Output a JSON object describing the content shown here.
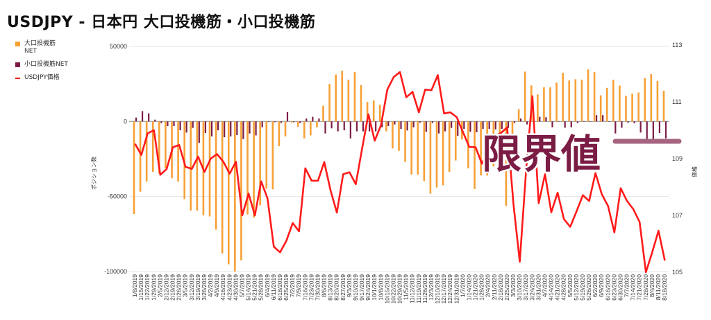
{
  "title": "USDJPY - 日本円 大口投機筋・小口投機筋",
  "annotation": "限界値",
  "colors": {
    "large": "#f7a035",
    "small": "#7b1c45",
    "price": "#ff1a1a",
    "annotation": "#7b1c45",
    "pill": "#a5647f"
  },
  "chart_data": {
    "type": "bar+line",
    "title": "USDJPY - 日本円 大口投機筋・小口投機筋",
    "ylabel": "ポジション数",
    "y2label": "価格",
    "ylim": [
      -100000,
      50000
    ],
    "y2lim": [
      105,
      113
    ],
    "yticks": [
      "50000",
      "0",
      "-50000",
      "-100000"
    ],
    "yticks_values": [
      50000,
      0,
      -50000,
      -100000
    ],
    "y2ticks": [
      "113",
      "111",
      "109",
      "107",
      "105"
    ],
    "y2ticks_values": [
      113,
      111,
      109,
      107,
      105
    ],
    "legend": [
      "大口投機筋NET",
      "小口投機筋NET",
      "USDJPY価格"
    ],
    "legend_lines": [
      [
        "大口投機筋",
        "NET"
      ],
      [
        "小口投機筋NET"
      ],
      [
        "USDJPY価格"
      ]
    ],
    "legend_position": "left",
    "x": [
      "1/8/2019",
      "1/15/2019",
      "1/22/2019",
      "1/29/2019",
      "2/5/2019",
      "2/12/2019",
      "2/19/2019",
      "2/26/2019",
      "3/5/2019",
      "3/12/2019",
      "3/19/2019",
      "3/26/2019",
      "4/2/2019",
      "4/9/2019",
      "4/16/2019",
      "4/23/2019",
      "4/30/2019",
      "5/7/2019",
      "5/14/2019",
      "5/21/2019",
      "5/28/2019",
      "6/4/2019",
      "6/11/2019",
      "6/18/2019",
      "6/25/2019",
      "7/2/2019",
      "7/9/2019",
      "7/16/2019",
      "7/23/2019",
      "7/30/2019",
      "8/6/2019",
      "8/13/2019",
      "8/20/2019",
      "8/27/2019",
      "9/3/2019",
      "9/10/2019",
      "9/17/2019",
      "9/24/2019",
      "10/1/2019",
      "10/8/2019",
      "10/15/2019",
      "10/22/2019",
      "10/29/2019",
      "11/5/2019",
      "11/12/2019",
      "11/19/2019",
      "11/26/2019",
      "12/3/2019",
      "12/10/2019",
      "12/17/2019",
      "12/24/2019",
      "12/31/2019",
      "1/7/2020",
      "1/14/2020",
      "1/21/2020",
      "1/28/2020",
      "2/4/2020",
      "2/11/2020",
      "2/18/2020",
      "2/25/2020",
      "3/3/2020",
      "3/10/2020",
      "3/17/2020",
      "3/24/2020",
      "3/31/2020",
      "4/7/2020",
      "4/14/2020",
      "4/21/2020",
      "4/28/2020",
      "5/5/2020",
      "5/12/2020",
      "5/19/2020",
      "5/26/2020",
      "6/2/2020",
      "6/9/2020",
      "6/16/2020",
      "6/23/2020",
      "6/30/2020",
      "7/7/2020",
      "7/14/2020",
      "7/21/2020",
      "7/28/2020",
      "8/4/2020",
      "8/11/2020",
      "8/18/2020"
    ],
    "series": [
      {
        "name": "大口投機筋NET",
        "type": "bar",
        "axis": "left",
        "values": [
          -61700,
          -46800,
          -40100,
          -33600,
          -34700,
          -31300,
          -37800,
          -40100,
          -51700,
          -59400,
          -59400,
          -62500,
          -63300,
          -72100,
          -88000,
          -95200,
          -100000,
          -92600,
          -62000,
          -64000,
          -55900,
          -44800,
          -45200,
          -16500,
          -10000,
          -800,
          -3500,
          -11300,
          -9300,
          -3900,
          10500,
          25000,
          31300,
          33800,
          27800,
          32900,
          24200,
          13000,
          13900,
          11100,
          -6600,
          -18000,
          -19600,
          -26900,
          -35400,
          -35400,
          -39800,
          -48100,
          -44000,
          -42500,
          -33600,
          -26000,
          -12000,
          -31300,
          -45000,
          -36000,
          -36000,
          -30000,
          -25000,
          -56300,
          -20000,
          8200,
          33200,
          24000,
          18000,
          22700,
          22700,
          25900,
          32400,
          27300,
          28100,
          27800,
          34700,
          32900,
          17400,
          22400,
          27800,
          23900,
          17000,
          18500,
          19300,
          28900,
          31600,
          27000,
          20500
        ]
      },
      {
        "name": "小口投機筋NET",
        "type": "bar",
        "axis": "left",
        "values": [
          2600,
          6900,
          5400,
          1200,
          -1100,
          -3100,
          -3100,
          -5900,
          -7400,
          -4300,
          -14300,
          -7700,
          -10000,
          -5900,
          -10500,
          -10000,
          -9100,
          -11700,
          -8000,
          -9300,
          -3900,
          -300,
          -500,
          -1000,
          6200,
          -500,
          -1000,
          1900,
          3100,
          1900,
          -8000,
          -4600,
          -6600,
          -5900,
          -11300,
          -6600,
          -6600,
          -6600,
          -6600,
          -3900,
          -3100,
          -2000,
          -5000,
          -6000,
          -3900,
          -800,
          -6900,
          -1000,
          -8000,
          -6600,
          -4300,
          -9600,
          -5000,
          -6900,
          -7200,
          -5000,
          -5000,
          -5300,
          -5000,
          -4300,
          -1000,
          1900,
          -2000,
          0,
          3100,
          2800,
          -3900,
          0,
          -4200,
          -3900,
          -1000,
          0,
          0,
          4200,
          4200,
          0,
          -8000,
          -4200,
          -800,
          -1200,
          -7400,
          -13100,
          -14700,
          -7700,
          -11300
        ]
      },
      {
        "name": "USDJPY価格",
        "type": "line",
        "axis": "right",
        "values": [
          109.52,
          109.13,
          109.89,
          110.0,
          108.43,
          108.63,
          109.4,
          109.48,
          108.71,
          108.64,
          109.07,
          108.53,
          109.0,
          109.16,
          108.89,
          108.47,
          108.89,
          107.0,
          107.77,
          107.0,
          108.2,
          107.6,
          105.9,
          105.7,
          106.11,
          106.73,
          106.44,
          108.66,
          108.22,
          108.22,
          108.88,
          107.88,
          107.1,
          108.45,
          108.52,
          108.1,
          109.35,
          110.56,
          109.63,
          110.18,
          111.43,
          111.87,
          112.05,
          111.16,
          111.35,
          110.63,
          111.43,
          111.41,
          111.94,
          110.59,
          110.63,
          110.46,
          109.93,
          109.41,
          109.4,
          108.82,
          109.3,
          109.8,
          109.9,
          110.1,
          107.4,
          105.37,
          108.57,
          111.2,
          107.43,
          108.45,
          107.11,
          107.8,
          106.87,
          106.6,
          107.14,
          107.71,
          107.51,
          108.49,
          107.75,
          107.33,
          106.4,
          107.96,
          107.51,
          107.22,
          106.77,
          105.0,
          105.7,
          106.46,
          105.41
        ]
      }
    ],
    "grid": true
  }
}
